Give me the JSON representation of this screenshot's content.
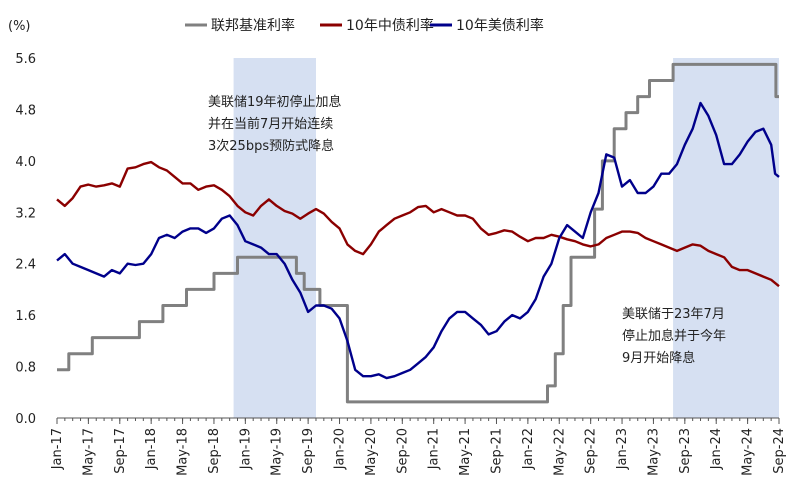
{
  "chart_data": {
    "type": "line",
    "ylabel": "(%)",
    "ylim": [
      0,
      5.6
    ],
    "yticks": [
      "0.0",
      "0.8",
      "1.6",
      "2.4",
      "3.2",
      "4.0",
      "4.8",
      "5.6"
    ],
    "x_range_months": [
      0,
      92
    ],
    "xticks": [
      {
        "label": "Jan-17",
        "m": 0
      },
      {
        "label": "May-17",
        "m": 4
      },
      {
        "label": "Sep-17",
        "m": 8
      },
      {
        "label": "Jan-18",
        "m": 12
      },
      {
        "label": "May-18",
        "m": 16
      },
      {
        "label": "Sep-18",
        "m": 20
      },
      {
        "label": "Jan-19",
        "m": 24
      },
      {
        "label": "May-19",
        "m": 28
      },
      {
        "label": "Sep-19",
        "m": 32
      },
      {
        "label": "Jan-20",
        "m": 36
      },
      {
        "label": "May-20",
        "m": 40
      },
      {
        "label": "Sep-20",
        "m": 44
      },
      {
        "label": "Jan-21",
        "m": 48
      },
      {
        "label": "May-21",
        "m": 52
      },
      {
        "label": "Sep-21",
        "m": 56
      },
      {
        "label": "Jan-22",
        "m": 60
      },
      {
        "label": "May-22",
        "m": 64
      },
      {
        "label": "Sep-22",
        "m": 68
      },
      {
        "label": "Jan-23",
        "m": 72
      },
      {
        "label": "May-23",
        "m": 76
      },
      {
        "label": "Sep-23",
        "m": 80
      },
      {
        "label": "Jan-24",
        "m": 84
      },
      {
        "label": "May-24",
        "m": 88
      },
      {
        "label": "Sep-24",
        "m": 92
      }
    ],
    "shaded_regions": [
      {
        "start_m": 22.5,
        "end_m": 33
      },
      {
        "start_m": 78.5,
        "end_m": 92
      }
    ],
    "series": [
      {
        "name": "联邦基准利率",
        "color": "#808080",
        "step": true,
        "points": [
          [
            0,
            0.75
          ],
          [
            1.5,
            1.0
          ],
          [
            4.5,
            1.25
          ],
          [
            10.5,
            1.5
          ],
          [
            13.5,
            1.75
          ],
          [
            16.5,
            2.0
          ],
          [
            20,
            2.25
          ],
          [
            23,
            2.5
          ],
          [
            30.5,
            2.25
          ],
          [
            31.5,
            2.0
          ],
          [
            33.5,
            1.75
          ],
          [
            37,
            0.25
          ],
          [
            62.5,
            0.5
          ],
          [
            63.5,
            1.0
          ],
          [
            64.5,
            1.75
          ],
          [
            65.5,
            2.5
          ],
          [
            68.5,
            3.25
          ],
          [
            69.5,
            4.0
          ],
          [
            71,
            4.5
          ],
          [
            72.5,
            4.75
          ],
          [
            74,
            5.0
          ],
          [
            75.5,
            5.25
          ],
          [
            78.5,
            5.5
          ],
          [
            91.6,
            5.0
          ],
          [
            92,
            5.0
          ]
        ]
      },
      {
        "name": "10年中债利率",
        "color": "#8B0000",
        "step": false,
        "points": [
          [
            0,
            3.4
          ],
          [
            1,
            3.3
          ],
          [
            2,
            3.42
          ],
          [
            3,
            3.6
          ],
          [
            4,
            3.63
          ],
          [
            5,
            3.6
          ],
          [
            6,
            3.62
          ],
          [
            7,
            3.65
          ],
          [
            8,
            3.6
          ],
          [
            9,
            3.88
          ],
          [
            10,
            3.9
          ],
          [
            11,
            3.95
          ],
          [
            12,
            3.98
          ],
          [
            13,
            3.9
          ],
          [
            14,
            3.85
          ],
          [
            15,
            3.75
          ],
          [
            16,
            3.65
          ],
          [
            17,
            3.65
          ],
          [
            18,
            3.55
          ],
          [
            19,
            3.6
          ],
          [
            20,
            3.62
          ],
          [
            21,
            3.55
          ],
          [
            22,
            3.45
          ],
          [
            23,
            3.3
          ],
          [
            24,
            3.2
          ],
          [
            25,
            3.15
          ],
          [
            26,
            3.3
          ],
          [
            27,
            3.4
          ],
          [
            28,
            3.3
          ],
          [
            29,
            3.22
          ],
          [
            30,
            3.18
          ],
          [
            31,
            3.1
          ],
          [
            32,
            3.18
          ],
          [
            33,
            3.25
          ],
          [
            34,
            3.18
          ],
          [
            35,
            3.05
          ],
          [
            36,
            2.95
          ],
          [
            37,
            2.7
          ],
          [
            38,
            2.6
          ],
          [
            39,
            2.55
          ],
          [
            40,
            2.7
          ],
          [
            41,
            2.9
          ],
          [
            42,
            3.0
          ],
          [
            43,
            3.1
          ],
          [
            44,
            3.15
          ],
          [
            45,
            3.2
          ],
          [
            46,
            3.28
          ],
          [
            47,
            3.3
          ],
          [
            48,
            3.2
          ],
          [
            49,
            3.25
          ],
          [
            50,
            3.2
          ],
          [
            51,
            3.15
          ],
          [
            52,
            3.15
          ],
          [
            53,
            3.1
          ],
          [
            54,
            2.95
          ],
          [
            55,
            2.85
          ],
          [
            56,
            2.88
          ],
          [
            57,
            2.92
          ],
          [
            58,
            2.9
          ],
          [
            59,
            2.82
          ],
          [
            60,
            2.75
          ],
          [
            61,
            2.8
          ],
          [
            62,
            2.8
          ],
          [
            63,
            2.85
          ],
          [
            64,
            2.82
          ],
          [
            65,
            2.78
          ],
          [
            66,
            2.75
          ],
          [
            67,
            2.7
          ],
          [
            68,
            2.67
          ],
          [
            69,
            2.7
          ],
          [
            70,
            2.8
          ],
          [
            71,
            2.85
          ],
          [
            72,
            2.9
          ],
          [
            73,
            2.9
          ],
          [
            74,
            2.88
          ],
          [
            75,
            2.8
          ],
          [
            76,
            2.75
          ],
          [
            77,
            2.7
          ],
          [
            78,
            2.65
          ],
          [
            79,
            2.6
          ],
          [
            80,
            2.65
          ],
          [
            81,
            2.7
          ],
          [
            82,
            2.68
          ],
          [
            83,
            2.6
          ],
          [
            84,
            2.55
          ],
          [
            85,
            2.5
          ],
          [
            86,
            2.35
          ],
          [
            87,
            2.3
          ],
          [
            88,
            2.3
          ],
          [
            89,
            2.25
          ],
          [
            90,
            2.2
          ],
          [
            91,
            2.15
          ],
          [
            92,
            2.05
          ]
        ]
      },
      {
        "name": "10年美债利率",
        "color": "#00008B",
        "step": false,
        "points": [
          [
            0,
            2.45
          ],
          [
            0.5,
            2.5
          ],
          [
            1,
            2.55
          ],
          [
            2,
            2.4
          ],
          [
            3,
            2.35
          ],
          [
            4,
            2.3
          ],
          [
            5,
            2.25
          ],
          [
            6,
            2.2
          ],
          [
            7,
            2.3
          ],
          [
            8,
            2.25
          ],
          [
            9,
            2.4
          ],
          [
            10,
            2.38
          ],
          [
            11,
            2.4
          ],
          [
            12,
            2.55
          ],
          [
            13,
            2.8
          ],
          [
            14,
            2.85
          ],
          [
            15,
            2.8
          ],
          [
            16,
            2.9
          ],
          [
            17,
            2.95
          ],
          [
            18,
            2.95
          ],
          [
            19,
            2.88
          ],
          [
            20,
            2.95
          ],
          [
            21,
            3.1
          ],
          [
            22,
            3.15
          ],
          [
            23,
            3.0
          ],
          [
            24,
            2.75
          ],
          [
            25,
            2.7
          ],
          [
            26,
            2.65
          ],
          [
            27,
            2.55
          ],
          [
            28,
            2.55
          ],
          [
            29,
            2.4
          ],
          [
            30,
            2.15
          ],
          [
            31,
            1.95
          ],
          [
            32,
            1.65
          ],
          [
            33,
            1.75
          ],
          [
            34,
            1.75
          ],
          [
            35,
            1.7
          ],
          [
            36,
            1.55
          ],
          [
            37,
            1.2
          ],
          [
            38,
            0.75
          ],
          [
            39,
            0.65
          ],
          [
            40,
            0.65
          ],
          [
            41,
            0.68
          ],
          [
            42,
            0.62
          ],
          [
            43,
            0.65
          ],
          [
            44,
            0.7
          ],
          [
            45,
            0.75
          ],
          [
            46,
            0.85
          ],
          [
            47,
            0.95
          ],
          [
            48,
            1.1
          ],
          [
            49,
            1.35
          ],
          [
            50,
            1.55
          ],
          [
            51,
            1.65
          ],
          [
            52,
            1.65
          ],
          [
            53,
            1.55
          ],
          [
            54,
            1.45
          ],
          [
            55,
            1.3
          ],
          [
            56,
            1.35
          ],
          [
            57,
            1.5
          ],
          [
            58,
            1.6
          ],
          [
            59,
            1.55
          ],
          [
            60,
            1.65
          ],
          [
            61,
            1.85
          ],
          [
            62,
            2.2
          ],
          [
            63,
            2.4
          ],
          [
            64,
            2.8
          ],
          [
            65,
            3.0
          ],
          [
            66,
            2.9
          ],
          [
            67,
            2.8
          ],
          [
            68,
            3.2
          ],
          [
            69,
            3.5
          ],
          [
            70,
            4.1
          ],
          [
            71,
            4.05
          ],
          [
            72,
            3.6
          ],
          [
            73,
            3.7
          ],
          [
            74,
            3.5
          ],
          [
            75,
            3.5
          ],
          [
            76,
            3.6
          ],
          [
            77,
            3.8
          ],
          [
            78,
            3.8
          ],
          [
            79,
            3.95
          ],
          [
            80,
            4.25
          ],
          [
            81,
            4.5
          ],
          [
            82,
            4.9
          ],
          [
            83,
            4.7
          ],
          [
            84,
            4.4
          ],
          [
            85,
            3.95
          ],
          [
            86,
            3.95
          ],
          [
            87,
            4.1
          ],
          [
            88,
            4.3
          ],
          [
            89,
            4.45
          ],
          [
            90,
            4.5
          ],
          [
            91,
            4.25
          ],
          [
            91.5,
            3.8
          ],
          [
            92,
            3.75
          ]
        ]
      }
    ],
    "annotations": [
      {
        "lines": [
          "美联储19年初停止加息",
          "并在当前7月开始连续",
          "3次25bps预防式降息"
        ]
      },
      {
        "lines": [
          "美联储于23年7月",
          "停止加息并于今年",
          "9月开始降息"
        ]
      }
    ]
  }
}
